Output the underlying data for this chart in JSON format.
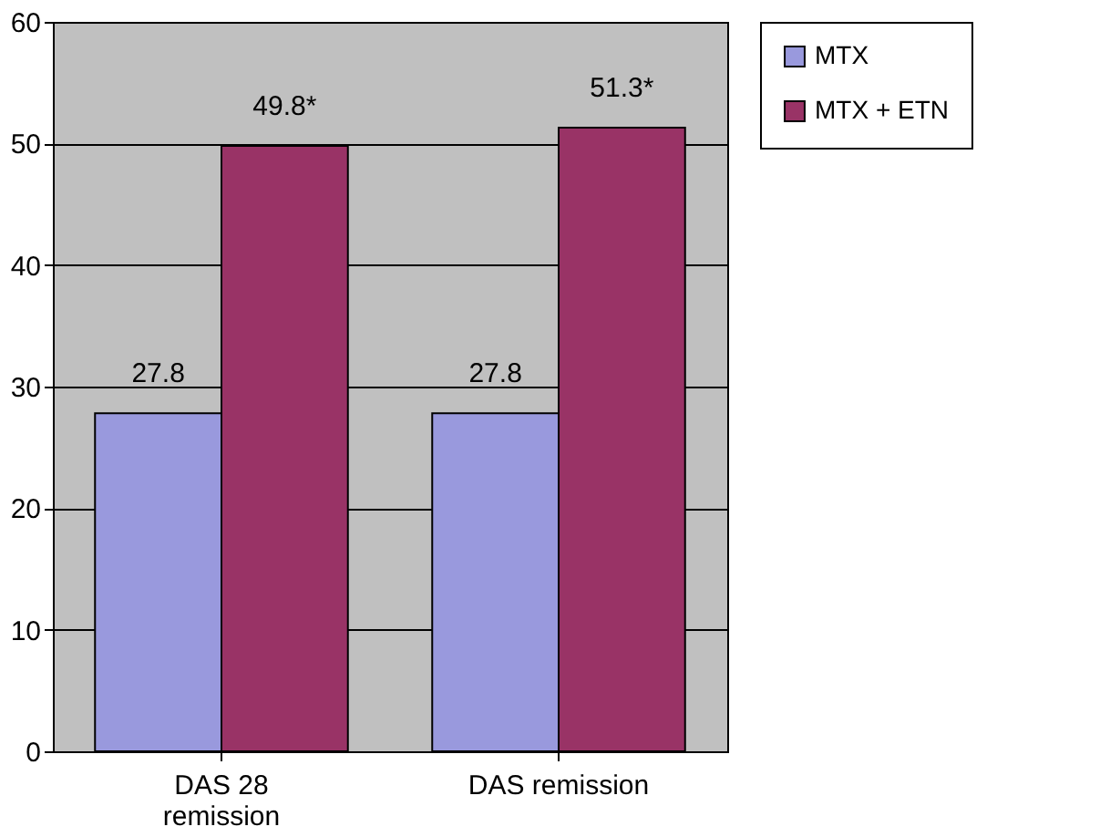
{
  "chart_data": {
    "type": "bar",
    "categories": [
      "DAS 28 remission",
      "DAS remission"
    ],
    "series": [
      {
        "name": "MTX",
        "color": "#9999dd",
        "values": [
          27.8,
          27.8
        ],
        "value_labels": [
          "27.8",
          "27.8"
        ]
      },
      {
        "name": "MTX + ETN",
        "color": "#993366",
        "values": [
          49.8,
          51.3
        ],
        "value_labels": [
          "49.8*",
          "51.3*"
        ]
      }
    ],
    "ylim": [
      0,
      60
    ],
    "yticks": [
      0,
      10,
      20,
      30,
      40,
      50,
      60
    ],
    "grid": "y",
    "legend": "right"
  }
}
